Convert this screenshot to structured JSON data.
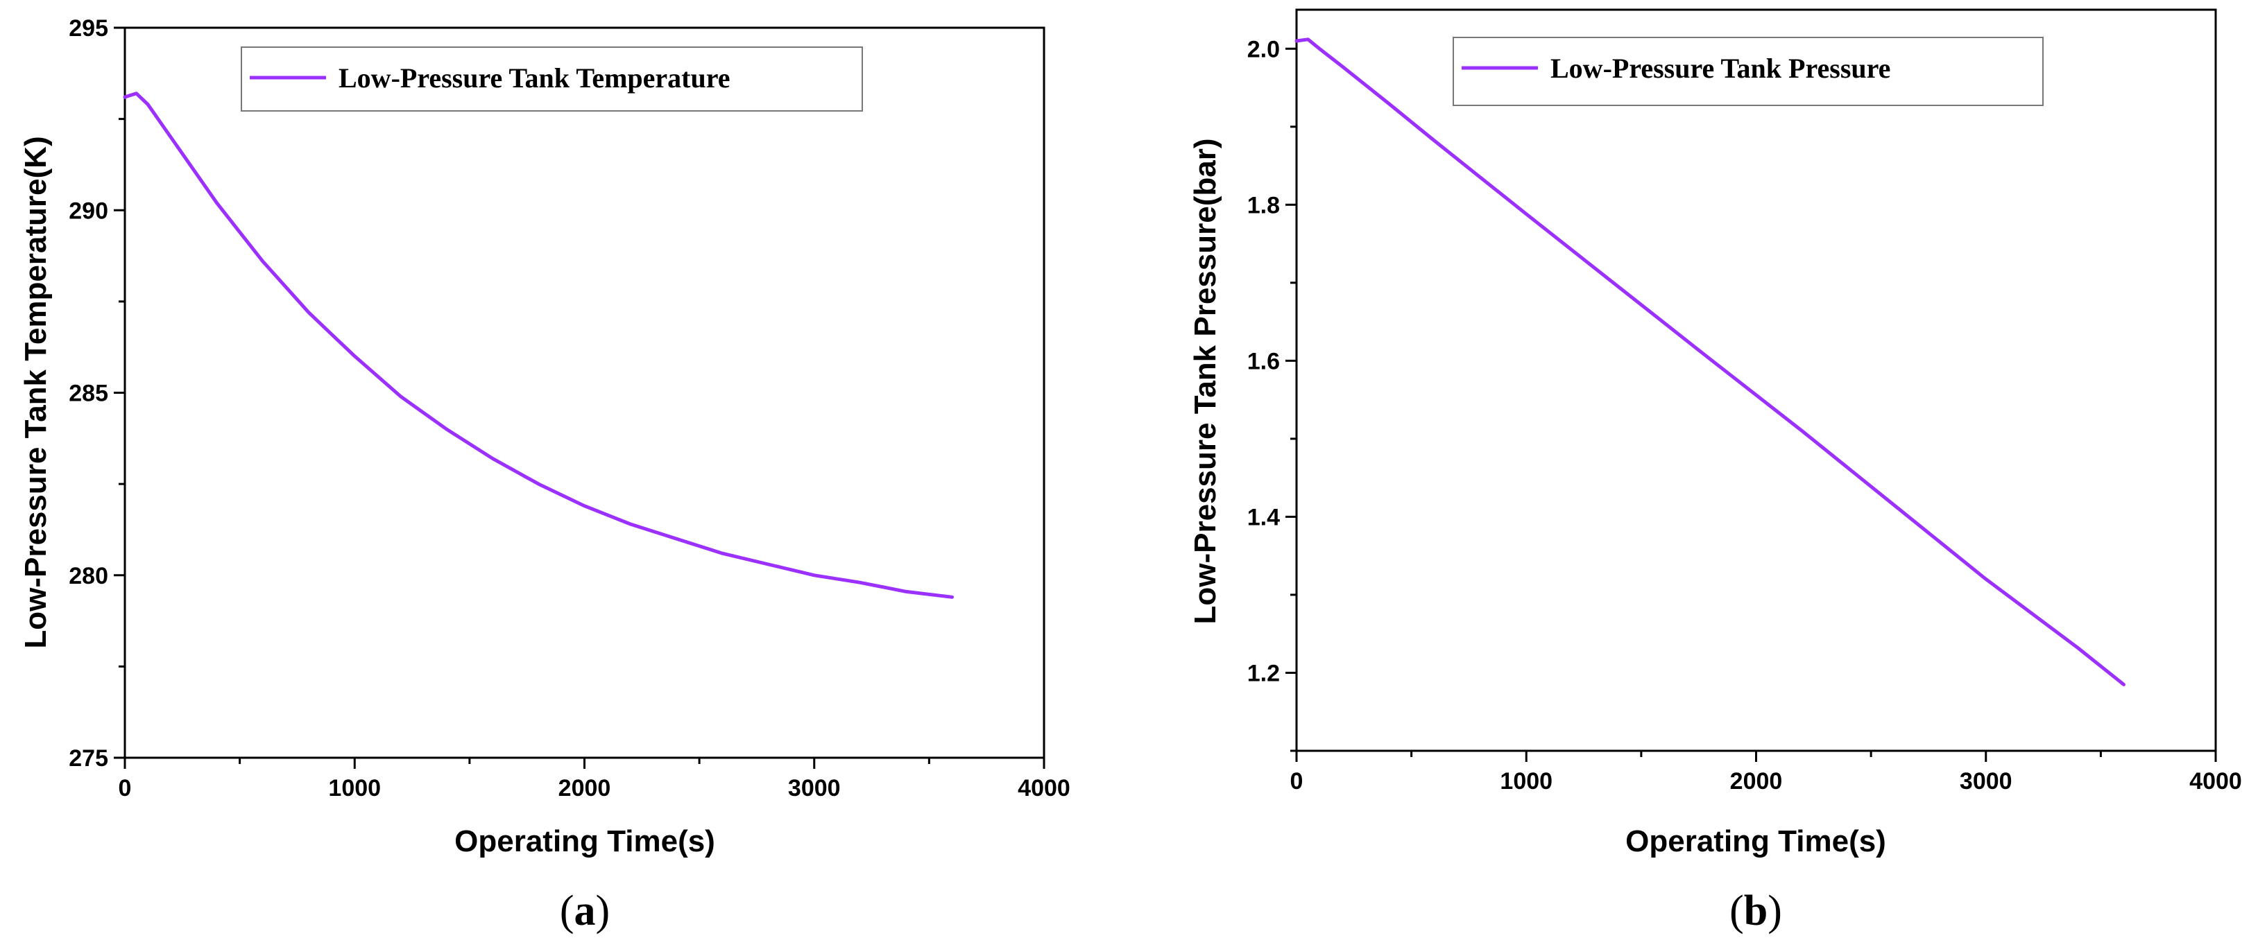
{
  "figure": {
    "panels": [
      {
        "label_open": "(",
        "label_letter": "a",
        "label_close": ")"
      },
      {
        "label_open": "(",
        "label_letter": "b",
        "label_close": ")"
      }
    ]
  },
  "chart_data": [
    {
      "type": "line",
      "title": "",
      "xlabel": "Operating Time(s)",
      "ylabel": "Low-Pressure Tank Temperature(K)",
      "xlim": [
        0,
        4000
      ],
      "ylim": [
        275,
        295
      ],
      "xticks": [
        "0",
        "1000",
        "2000",
        "3000",
        "4000"
      ],
      "yticks": [
        "275",
        "280",
        "285",
        "290",
        "295"
      ],
      "xtick_values": [
        0,
        1000,
        2000,
        3000,
        4000
      ],
      "ytick_values": [
        275,
        280,
        285,
        290,
        295
      ],
      "legend_position": "top",
      "color": "#9b30ff",
      "series": [
        {
          "name": "Low-Pressure Tank Temperature",
          "x": [
            0,
            50,
            100,
            200,
            300,
            400,
            500,
            600,
            700,
            800,
            900,
            1000,
            1200,
            1400,
            1600,
            1800,
            2000,
            2200,
            2400,
            2600,
            2800,
            3000,
            3200,
            3400,
            3600
          ],
          "y": [
            293.1,
            293.2,
            292.9,
            292.0,
            291.1,
            290.2,
            289.4,
            288.6,
            287.9,
            287.2,
            286.6,
            286.0,
            284.9,
            284.0,
            283.2,
            282.5,
            281.9,
            281.4,
            281.0,
            280.6,
            280.3,
            280.0,
            279.8,
            279.55,
            279.4
          ]
        }
      ]
    },
    {
      "type": "line",
      "title": "",
      "xlabel": "Operating Time(s)",
      "ylabel": "Low-Pressure Tank Pressure(bar)",
      "xlim": [
        0,
        4000
      ],
      "ylim": [
        1.1,
        2.05
      ],
      "xticks": [
        "0",
        "1000",
        "2000",
        "3000",
        "4000"
      ],
      "yticks": [
        "1.2",
        "1.4",
        "1.6",
        "1.8",
        "2.0"
      ],
      "xtick_values": [
        0,
        1000,
        2000,
        3000,
        4000
      ],
      "ytick_values": [
        1.2,
        1.4,
        1.6,
        1.8,
        2.0
      ],
      "legend_position": "top",
      "color": "#9b30ff",
      "series": [
        {
          "name": "Low-Pressure Tank Pressure",
          "x": [
            0,
            50,
            100,
            200,
            400,
            600,
            800,
            1000,
            1400,
            1800,
            2200,
            2600,
            3000,
            3400,
            3600
          ],
          "y": [
            2.01,
            2.012,
            2.0,
            1.977,
            1.93,
            1.882,
            1.835,
            1.788,
            1.695,
            1.602,
            1.51,
            1.415,
            1.32,
            1.232,
            1.185
          ]
        }
      ]
    }
  ]
}
